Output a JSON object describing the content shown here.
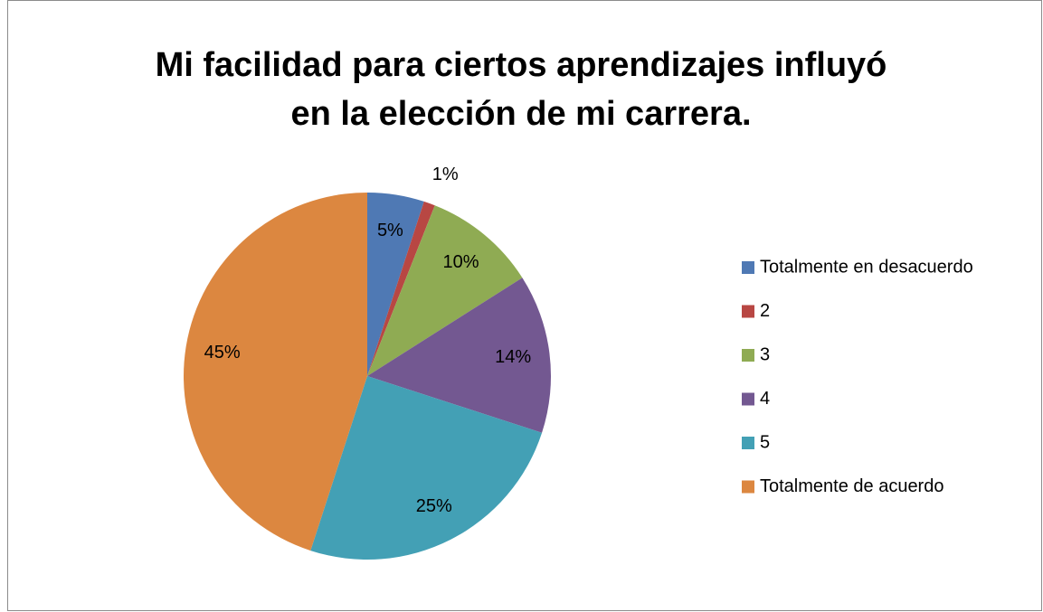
{
  "chart_data": {
    "type": "pie",
    "title": [
      "Mi facilidad para ciertos aprendizajes influyó",
      "en la elección de mi carrera."
    ],
    "categories": [
      "Totalmente en desacuerdo",
      "2",
      "3",
      "4",
      "5",
      "Totalmente de acuerdo"
    ],
    "values": [
      5,
      1,
      10,
      14,
      25,
      45
    ],
    "value_labels": [
      "5%",
      "1%",
      "10%",
      "14%",
      "25%",
      "45%"
    ],
    "colors": [
      "#4f79b4",
      "#b84743",
      "#8fab53",
      "#735891",
      "#43a0b5",
      "#dc8740"
    ],
    "legend": "right"
  }
}
